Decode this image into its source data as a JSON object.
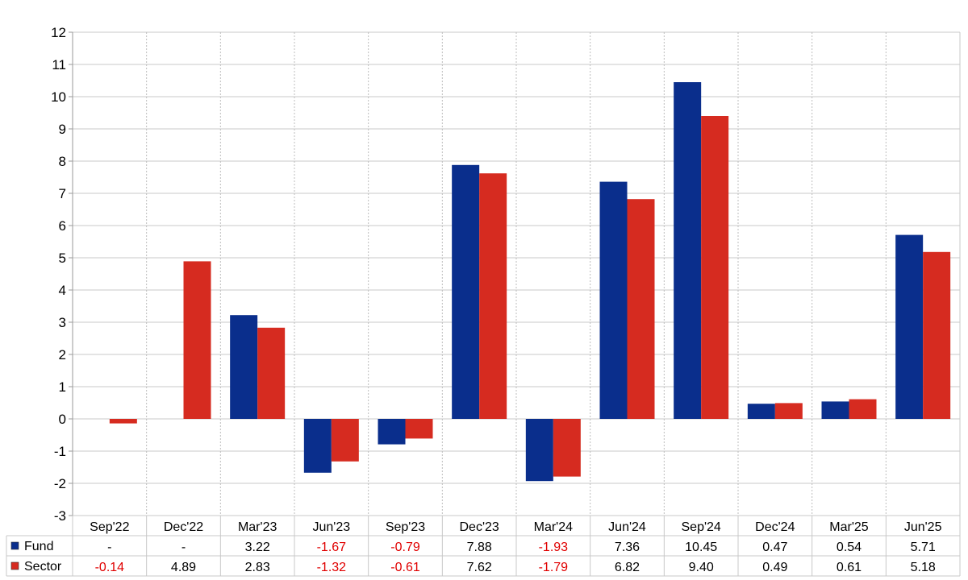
{
  "chart_data": {
    "type": "bar",
    "categories": [
      "Sep'22",
      "Dec'22",
      "Mar'23",
      "Jun'23",
      "Sep'23",
      "Dec'23",
      "Mar'24",
      "Jun'24",
      "Sep'24",
      "Dec'24",
      "Mar'25",
      "Jun'25"
    ],
    "series": [
      {
        "name": "Fund",
        "color": "#0a2e8c",
        "values": [
          null,
          null,
          3.22,
          -1.67,
          -0.79,
          7.88,
          -1.93,
          7.36,
          10.45,
          0.47,
          0.54,
          5.71
        ],
        "labels": [
          "-",
          "-",
          "3.22",
          "-1.67",
          "-0.79",
          "7.88",
          "-1.93",
          "7.36",
          "10.45",
          "0.47",
          "0.54",
          "5.71"
        ]
      },
      {
        "name": "Sector",
        "color": "#d62b20",
        "values": [
          -0.14,
          4.89,
          2.83,
          -1.32,
          -0.61,
          7.62,
          -1.79,
          6.82,
          9.4,
          0.49,
          0.61,
          5.18
        ],
        "labels": [
          "-0.14",
          "4.89",
          "2.83",
          "-1.32",
          "-0.61",
          "7.62",
          "-1.79",
          "6.82",
          "9.40",
          "0.49",
          "0.61",
          "5.18"
        ]
      }
    ],
    "yticks": [
      12,
      11,
      10,
      9,
      8,
      7,
      6,
      5,
      4,
      3,
      2,
      1,
      0,
      -1,
      -2,
      -3
    ],
    "ylim": [
      -3,
      12
    ],
    "grid": true,
    "negative_label_color": "#e00000",
    "title": "",
    "xlabel": "",
    "ylabel": ""
  }
}
